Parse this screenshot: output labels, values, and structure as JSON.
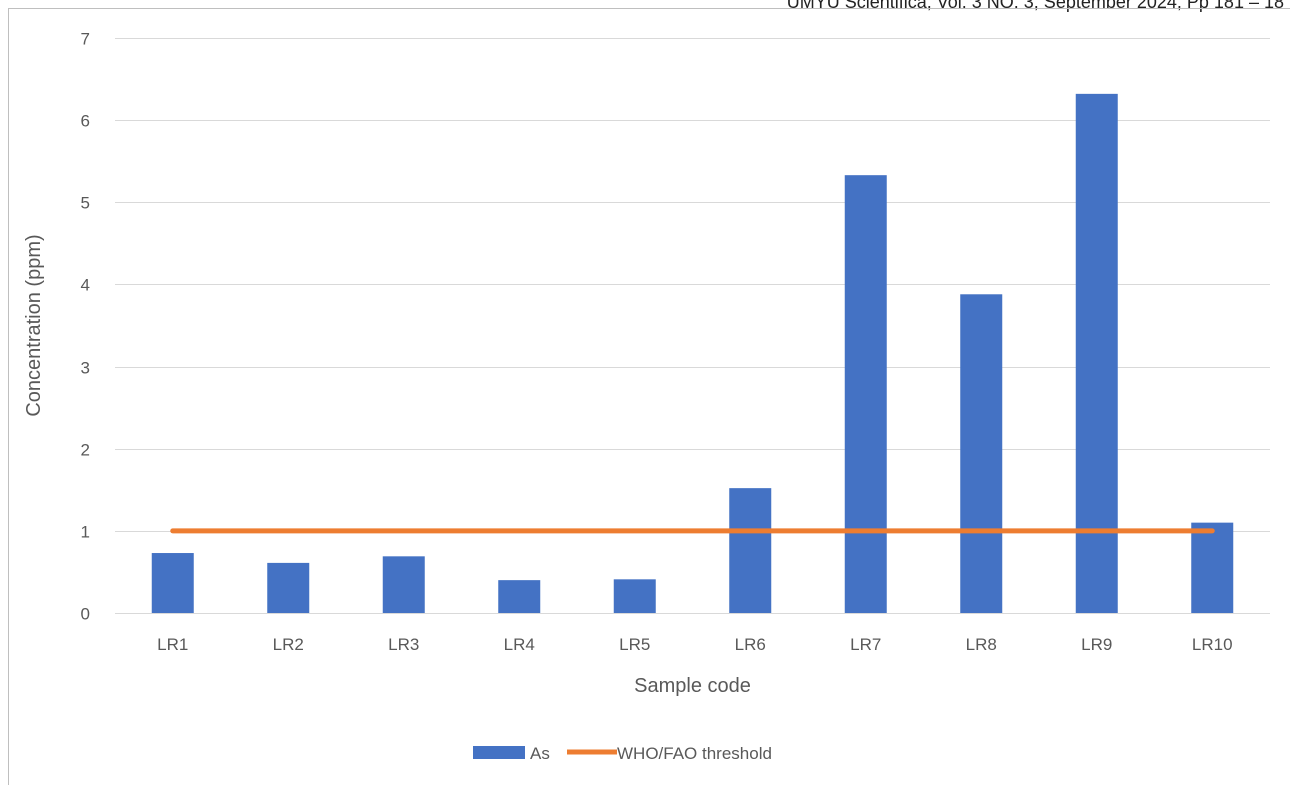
{
  "header": {
    "text": "UMYU Scientifica, Vol. 3 NO. 3, September 2024, Pp 181 – 18"
  },
  "chart_data": {
    "type": "bar",
    "categories": [
      "LR1",
      "LR2",
      "LR3",
      "LR4",
      "LR5",
      "LR6",
      "LR7",
      "LR8",
      "LR9",
      "LR10"
    ],
    "series": [
      {
        "name": "As",
        "type": "bar",
        "color": "#4472C4",
        "values": [
          0.73,
          0.61,
          0.69,
          0.4,
          0.41,
          1.52,
          5.33,
          3.88,
          6.32,
          1.1
        ]
      },
      {
        "name": "WHO/FAO threshold",
        "type": "line",
        "color": "#ED7D31",
        "values": [
          1,
          1,
          1,
          1,
          1,
          1,
          1,
          1,
          1,
          1
        ]
      }
    ],
    "title": "",
    "xlabel": "Sample code",
    "ylabel": "Concentration (ppm)",
    "ylim": [
      0,
      7
    ],
    "yticks": [
      0,
      1,
      2,
      3,
      4,
      5,
      6,
      7
    ],
    "grid": true,
    "legend": "bottom"
  }
}
